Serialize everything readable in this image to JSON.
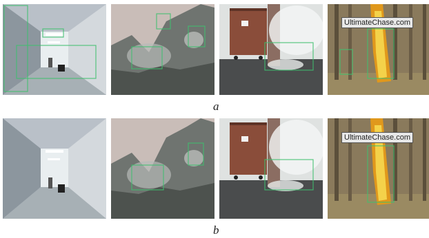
{
  "rows": [
    {
      "caption": "a",
      "frames": [
        {
          "scene": "corridor",
          "watermark": ""
        },
        {
          "scene": "mountain-smoke",
          "watermark": ""
        },
        {
          "scene": "wall-bin-smoke",
          "watermark": ""
        },
        {
          "scene": "forest-fire",
          "watermark": "UltimateChase.com"
        }
      ]
    },
    {
      "caption": "b",
      "frames": [
        {
          "scene": "corridor",
          "watermark": ""
        },
        {
          "scene": "mountain-smoke",
          "watermark": ""
        },
        {
          "scene": "wall-bin-smoke",
          "watermark": ""
        },
        {
          "scene": "forest-fire",
          "watermark": "UltimateChase.com"
        }
      ]
    }
  ],
  "colors": {
    "detection_box": "#3fbf6f"
  }
}
